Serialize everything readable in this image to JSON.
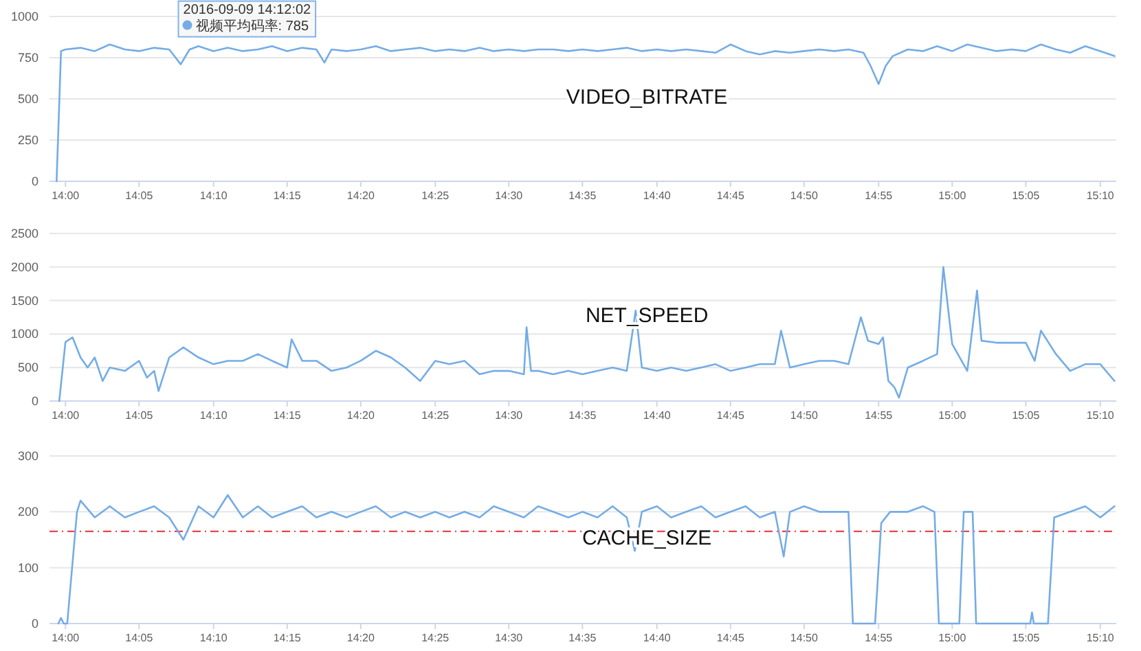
{
  "chart_data": [
    {
      "type": "line",
      "title": "VIDEO_BITRATE",
      "xlim": [
        13.982,
        15.185
      ],
      "ylim": [
        0,
        1000
      ],
      "yticks": [
        0,
        250,
        500,
        750,
        1000
      ],
      "grid": "y",
      "xticks": [
        {
          "value": 14,
          "label": "14:00"
        },
        {
          "value": 14.083,
          "label": "14:05"
        },
        {
          "value": 14.167,
          "label": "14:10"
        },
        {
          "value": 14.25,
          "label": "14:15"
        },
        {
          "value": 14.333,
          "label": "14:20"
        },
        {
          "value": 14.417,
          "label": "14:25"
        },
        {
          "value": 14.5,
          "label": "14:30"
        },
        {
          "value": 14.583,
          "label": "14:35"
        },
        {
          "value": 14.667,
          "label": "14:40"
        },
        {
          "value": 14.75,
          "label": "14:45"
        },
        {
          "value": 14.833,
          "label": "14:50"
        },
        {
          "value": 14.917,
          "label": "14:55"
        },
        {
          "value": 15,
          "label": "15:00"
        },
        {
          "value": 15.083,
          "label": "15:05"
        },
        {
          "value": 15.167,
          "label": "15:10"
        }
      ],
      "annotations": [
        {
          "text": "2016-09-09 14:12:02",
          "x": 14.201,
          "y": 785
        },
        {
          "text": "视频平均码率: 785",
          "x": 14.201,
          "y": 785
        }
      ],
      "series": [
        {
          "color": "#74ace6",
          "x": [
            13.99,
            13.995,
            14.0,
            14.017,
            14.033,
            14.05,
            14.067,
            14.083,
            14.1,
            14.117,
            14.13,
            14.14,
            14.15,
            14.167,
            14.183,
            14.2,
            14.217,
            14.233,
            14.25,
            14.267,
            14.283,
            14.292,
            14.3,
            14.317,
            14.333,
            14.35,
            14.367,
            14.383,
            14.4,
            14.417,
            14.433,
            14.45,
            14.467,
            14.483,
            14.5,
            14.517,
            14.533,
            14.55,
            14.567,
            14.583,
            14.6,
            14.617,
            14.633,
            14.65,
            14.667,
            14.683,
            14.7,
            14.717,
            14.733,
            14.75,
            14.767,
            14.783,
            14.8,
            14.817,
            14.833,
            14.85,
            14.867,
            14.883,
            14.9,
            14.908,
            14.917,
            14.925,
            14.933,
            14.95,
            14.967,
            14.983,
            15.0,
            15.017,
            15.033,
            15.05,
            15.067,
            15.083,
            15.1,
            15.117,
            15.133,
            15.15,
            15.167,
            15.183
          ],
          "values": [
            0,
            790,
            800,
            810,
            790,
            830,
            800,
            790,
            810,
            800,
            710,
            800,
            820,
            790,
            810,
            790,
            800,
            820,
            790,
            810,
            800,
            720,
            800,
            790,
            800,
            820,
            790,
            800,
            810,
            790,
            800,
            790,
            810,
            790,
            800,
            790,
            800,
            800,
            790,
            800,
            790,
            800,
            810,
            790,
            800,
            790,
            800,
            790,
            780,
            830,
            790,
            770,
            790,
            780,
            790,
            800,
            790,
            800,
            780,
            700,
            590,
            700,
            760,
            800,
            790,
            820,
            790,
            830,
            810,
            790,
            800,
            790,
            830,
            800,
            780,
            820,
            790,
            760
          ]
        }
      ]
    },
    {
      "type": "line",
      "title": "NET_SPEED",
      "xlim": [
        13.982,
        15.185
      ],
      "ylim": [
        0,
        2500
      ],
      "yticks": [
        0,
        500,
        1000,
        1500,
        2000,
        2500
      ],
      "grid": "y",
      "xticks": [
        {
          "value": 14,
          "label": "14:00"
        },
        {
          "value": 14.083,
          "label": "14:05"
        },
        {
          "value": 14.167,
          "label": "14:10"
        },
        {
          "value": 14.25,
          "label": "14:15"
        },
        {
          "value": 14.333,
          "label": "14:20"
        },
        {
          "value": 14.417,
          "label": "14:25"
        },
        {
          "value": 14.5,
          "label": "14:30"
        },
        {
          "value": 14.583,
          "label": "14:35"
        },
        {
          "value": 14.667,
          "label": "14:40"
        },
        {
          "value": 14.75,
          "label": "14:45"
        },
        {
          "value": 14.833,
          "label": "14:50"
        },
        {
          "value": 14.917,
          "label": "14:55"
        },
        {
          "value": 15,
          "label": "15:00"
        },
        {
          "value": 15.083,
          "label": "15:05"
        },
        {
          "value": 15.167,
          "label": "15:10"
        }
      ],
      "series": [
        {
          "color": "#74ace6",
          "x": [
            13.993,
            14.0,
            14.008,
            14.017,
            14.025,
            14.033,
            14.042,
            14.05,
            14.067,
            14.083,
            14.092,
            14.1,
            14.105,
            14.117,
            14.133,
            14.15,
            14.167,
            14.183,
            14.2,
            14.217,
            14.233,
            14.25,
            14.255,
            14.267,
            14.283,
            14.3,
            14.317,
            14.333,
            14.35,
            14.367,
            14.383,
            14.4,
            14.417,
            14.433,
            14.45,
            14.467,
            14.483,
            14.5,
            14.517,
            14.52,
            14.525,
            14.533,
            14.55,
            14.567,
            14.583,
            14.6,
            14.617,
            14.633,
            14.643,
            14.65,
            14.667,
            14.683,
            14.7,
            14.717,
            14.733,
            14.75,
            14.767,
            14.783,
            14.8,
            14.807,
            14.817,
            14.833,
            14.85,
            14.867,
            14.883,
            14.897,
            14.905,
            14.917,
            14.922,
            14.928,
            14.935,
            14.94,
            14.95,
            14.967,
            14.983,
            14.99,
            15.0,
            15.017,
            15.028,
            15.033,
            15.05,
            15.067,
            15.083,
            15.093,
            15.1,
            15.117,
            15.133,
            15.15,
            15.167,
            15.183
          ],
          "values": [
            0,
            880,
            950,
            650,
            500,
            650,
            300,
            500,
            450,
            600,
            350,
            450,
            150,
            650,
            800,
            650,
            550,
            600,
            600,
            700,
            600,
            500,
            920,
            600,
            600,
            450,
            500,
            600,
            750,
            650,
            500,
            300,
            600,
            550,
            600,
            400,
            450,
            450,
            400,
            1100,
            450,
            450,
            400,
            450,
            400,
            450,
            500,
            450,
            1350,
            500,
            450,
            500,
            450,
            500,
            550,
            450,
            500,
            550,
            550,
            1050,
            500,
            550,
            600,
            600,
            550,
            1250,
            900,
            850,
            950,
            300,
            200,
            50,
            500,
            600,
            700,
            2000,
            850,
            450,
            1650,
            900,
            870,
            870,
            870,
            600,
            1050,
            700,
            450,
            550,
            550,
            300
          ]
        }
      ]
    },
    {
      "type": "line",
      "title": "CACHE_SIZE",
      "xlim": [
        13.982,
        15.185
      ],
      "ylim": [
        0,
        300
      ],
      "yticks": [
        0,
        100,
        200,
        300
      ],
      "grid": "y",
      "xticks": [
        {
          "value": 14,
          "label": "14:00"
        },
        {
          "value": 14.083,
          "label": "14:05"
        },
        {
          "value": 14.167,
          "label": "14:10"
        },
        {
          "value": 14.25,
          "label": "14:15"
        },
        {
          "value": 14.333,
          "label": "14:20"
        },
        {
          "value": 14.417,
          "label": "14:25"
        },
        {
          "value": 14.5,
          "label": "14:30"
        },
        {
          "value": 14.583,
          "label": "14:35"
        },
        {
          "value": 14.667,
          "label": "14:40"
        },
        {
          "value": 14.75,
          "label": "14:45"
        },
        {
          "value": 14.833,
          "label": "14:50"
        },
        {
          "value": 14.917,
          "label": "14:55"
        },
        {
          "value": 15,
          "label": "15:00"
        },
        {
          "value": 15.083,
          "label": "15:05"
        },
        {
          "value": 15.167,
          "label": "15:10"
        }
      ],
      "ref_lines": [
        {
          "axis": "y",
          "value": 165,
          "color": "#e0303a",
          "line_style": "dashed"
        }
      ],
      "series": [
        {
          "color": "#74ace6",
          "x": [
            13.992,
            13.995,
            13.998,
            14.002,
            14.013,
            14.017,
            14.033,
            14.05,
            14.067,
            14.083,
            14.1,
            14.117,
            14.133,
            14.15,
            14.167,
            14.183,
            14.2,
            14.217,
            14.233,
            14.25,
            14.267,
            14.283,
            14.3,
            14.317,
            14.333,
            14.35,
            14.367,
            14.383,
            14.4,
            14.417,
            14.433,
            14.45,
            14.467,
            14.483,
            14.5,
            14.517,
            14.533,
            14.55,
            14.567,
            14.583,
            14.6,
            14.617,
            14.633,
            14.642,
            14.65,
            14.667,
            14.683,
            14.7,
            14.717,
            14.733,
            14.75,
            14.767,
            14.783,
            14.8,
            14.81,
            14.817,
            14.833,
            14.85,
            14.867,
            14.883,
            14.888,
            14.913,
            14.92,
            14.93,
            14.95,
            14.967,
            14.98,
            14.985,
            15.008,
            15.013,
            15.023,
            15.027,
            15.088,
            15.09,
            15.092,
            15.108,
            15.115,
            15.133,
            15.15,
            15.167,
            15.183
          ],
          "values": [
            0,
            10,
            0,
            0,
            200,
            220,
            190,
            210,
            190,
            200,
            210,
            190,
            150,
            210,
            190,
            230,
            190,
            210,
            190,
            200,
            210,
            190,
            200,
            190,
            200,
            210,
            190,
            200,
            190,
            200,
            190,
            200,
            190,
            210,
            200,
            190,
            210,
            200,
            190,
            200,
            190,
            210,
            190,
            130,
            200,
            210,
            190,
            200,
            210,
            190,
            200,
            210,
            190,
            200,
            120,
            200,
            210,
            200,
            200,
            200,
            0,
            0,
            180,
            200,
            200,
            210,
            200,
            0,
            0,
            200,
            200,
            0,
            0,
            20,
            0,
            0,
            190,
            200,
            210,
            190,
            210
          ]
        }
      ]
    }
  ]
}
